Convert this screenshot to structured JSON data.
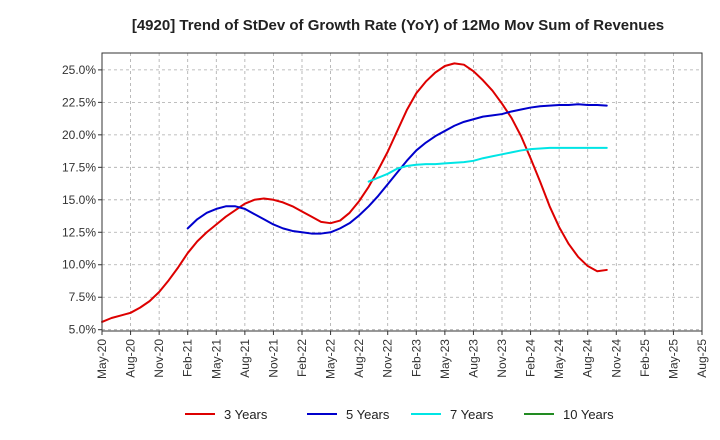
{
  "chart_data": {
    "type": "line",
    "title": "[4920]  Trend of StDev of Growth Rate (YoY) of 12Mo Mov Sum of Revenues",
    "xlabel": "",
    "ylabel": "",
    "x_ticks": [
      "May-20",
      "Aug-20",
      "Nov-20",
      "Feb-21",
      "May-21",
      "Aug-21",
      "Nov-21",
      "Feb-22",
      "May-22",
      "Aug-22",
      "Nov-22",
      "Feb-23",
      "May-23",
      "Aug-23",
      "Nov-23",
      "Feb-24",
      "May-24",
      "Aug-24",
      "Nov-24",
      "Feb-25",
      "May-25",
      "Aug-25"
    ],
    "y_ticks": [
      "5.0%",
      "7.5%",
      "10.0%",
      "12.5%",
      "15.0%",
      "17.5%",
      "20.0%",
      "22.5%",
      "25.0%"
    ],
    "y_tick_values": [
      5.0,
      7.5,
      10.0,
      12.5,
      15.0,
      17.5,
      20.0,
      22.5,
      25.0
    ],
    "ylim": [
      4.9,
      26.3
    ],
    "x_range_months": [
      0,
      63
    ],
    "grid": true,
    "legend_position": "bottom",
    "series": [
      {
        "name": "3 Years",
        "color": "#dd0000",
        "points": [
          [
            0,
            5.6
          ],
          [
            1,
            5.9
          ],
          [
            2,
            6.1
          ],
          [
            3,
            6.3
          ],
          [
            4,
            6.7
          ],
          [
            5,
            7.2
          ],
          [
            6,
            7.9
          ],
          [
            7,
            8.8
          ],
          [
            8,
            9.8
          ],
          [
            9,
            10.9
          ],
          [
            10,
            11.8
          ],
          [
            11,
            12.5
          ],
          [
            12,
            13.1
          ],
          [
            13,
            13.7
          ],
          [
            14,
            14.2
          ],
          [
            15,
            14.7
          ],
          [
            16,
            15.0
          ],
          [
            17,
            15.1
          ],
          [
            18,
            15.0
          ],
          [
            19,
            14.8
          ],
          [
            20,
            14.5
          ],
          [
            21,
            14.1
          ],
          [
            22,
            13.7
          ],
          [
            23,
            13.3
          ],
          [
            24,
            13.2
          ],
          [
            25,
            13.4
          ],
          [
            26,
            14.0
          ],
          [
            27,
            14.9
          ],
          [
            28,
            16.0
          ],
          [
            29,
            17.3
          ],
          [
            30,
            18.7
          ],
          [
            31,
            20.3
          ],
          [
            32,
            21.9
          ],
          [
            33,
            23.2
          ],
          [
            34,
            24.1
          ],
          [
            35,
            24.8
          ],
          [
            36,
            25.3
          ],
          [
            37,
            25.5
          ],
          [
            38,
            25.4
          ],
          [
            39,
            24.9
          ],
          [
            40,
            24.2
          ],
          [
            41,
            23.4
          ],
          [
            42,
            22.4
          ],
          [
            43,
            21.3
          ],
          [
            44,
            19.9
          ],
          [
            45,
            18.2
          ],
          [
            46,
            16.4
          ],
          [
            47,
            14.5
          ],
          [
            48,
            12.9
          ],
          [
            49,
            11.6
          ],
          [
            50,
            10.6
          ],
          [
            51,
            9.9
          ],
          [
            52,
            9.5
          ],
          [
            53,
            9.6
          ]
        ]
      },
      {
        "name": "5 Years",
        "color": "#0000cc",
        "points": [
          [
            9,
            12.8
          ],
          [
            10,
            13.5
          ],
          [
            11,
            14.0
          ],
          [
            12,
            14.3
          ],
          [
            13,
            14.5
          ],
          [
            14,
            14.5
          ],
          [
            15,
            14.3
          ],
          [
            16,
            13.9
          ],
          [
            17,
            13.5
          ],
          [
            18,
            13.1
          ],
          [
            19,
            12.8
          ],
          [
            20,
            12.6
          ],
          [
            21,
            12.5
          ],
          [
            22,
            12.4
          ],
          [
            23,
            12.4
          ],
          [
            24,
            12.5
          ],
          [
            25,
            12.8
          ],
          [
            26,
            13.2
          ],
          [
            27,
            13.8
          ],
          [
            28,
            14.5
          ],
          [
            29,
            15.3
          ],
          [
            30,
            16.2
          ],
          [
            31,
            17.1
          ],
          [
            32,
            18.0
          ],
          [
            33,
            18.8
          ],
          [
            34,
            19.4
          ],
          [
            35,
            19.9
          ],
          [
            36,
            20.3
          ],
          [
            37,
            20.7
          ],
          [
            38,
            21.0
          ],
          [
            39,
            21.2
          ],
          [
            40,
            21.4
          ],
          [
            41,
            21.5
          ],
          [
            42,
            21.6
          ],
          [
            43,
            21.8
          ],
          [
            44,
            21.95
          ],
          [
            45,
            22.1
          ],
          [
            46,
            22.2
          ],
          [
            47,
            22.25
          ],
          [
            48,
            22.3
          ],
          [
            49,
            22.3
          ],
          [
            50,
            22.35
          ],
          [
            51,
            22.3
          ],
          [
            52,
            22.3
          ],
          [
            53,
            22.25
          ]
        ]
      },
      {
        "name": "7 Years",
        "color": "#00e5e5",
        "points": [
          [
            28,
            16.4
          ],
          [
            29,
            16.7
          ],
          [
            30,
            17.0
          ],
          [
            31,
            17.4
          ],
          [
            32,
            17.6
          ],
          [
            33,
            17.7
          ],
          [
            34,
            17.75
          ],
          [
            35,
            17.75
          ],
          [
            36,
            17.8
          ],
          [
            37,
            17.85
          ],
          [
            38,
            17.9
          ],
          [
            39,
            18.0
          ],
          [
            40,
            18.2
          ],
          [
            41,
            18.35
          ],
          [
            42,
            18.5
          ],
          [
            43,
            18.65
          ],
          [
            44,
            18.8
          ],
          [
            45,
            18.9
          ],
          [
            46,
            18.95
          ],
          [
            47,
            19.0
          ],
          [
            48,
            19.0
          ],
          [
            49,
            19.0
          ],
          [
            50,
            19.0
          ],
          [
            51,
            19.0
          ],
          [
            52,
            19.0
          ],
          [
            53,
            19.0
          ]
        ]
      },
      {
        "name": "10 Years",
        "color": "#228b22",
        "points": []
      }
    ]
  }
}
